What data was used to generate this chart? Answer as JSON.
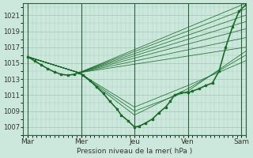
{
  "background_color": "#cce8dc",
  "grid_color": "#aaccbb",
  "line_color": "#1a6b2a",
  "ylabel": "Pression niveau de la mer( hPa )",
  "ylim": [
    1006.0,
    1022.5
  ],
  "yticks": [
    1007,
    1009,
    1011,
    1013,
    1015,
    1017,
    1019,
    1021
  ],
  "xlim": [
    0,
    100
  ],
  "xtick_positions": [
    2,
    26,
    50,
    74,
    98
  ],
  "xtick_labels": [
    "Mar",
    "Mer",
    "Jeu",
    "Ven",
    "Sam"
  ],
  "vline_positions": [
    2,
    26,
    50,
    74,
    98
  ],
  "ensemble_lines_upper": [
    {
      "x": [
        2,
        25,
        100
      ],
      "y": [
        1015.8,
        1013.8,
        1022.5
      ]
    },
    {
      "x": [
        2,
        25,
        100
      ],
      "y": [
        1015.8,
        1013.8,
        1021.8
      ]
    },
    {
      "x": [
        2,
        25,
        100
      ],
      "y": [
        1015.8,
        1013.8,
        1021.0
      ]
    },
    {
      "x": [
        2,
        25,
        100
      ],
      "y": [
        1015.8,
        1013.8,
        1020.2
      ]
    },
    {
      "x": [
        2,
        25,
        100
      ],
      "y": [
        1015.8,
        1013.8,
        1019.3
      ]
    },
    {
      "x": [
        2,
        25,
        100
      ],
      "y": [
        1015.8,
        1013.8,
        1018.2
      ]
    },
    {
      "x": [
        2,
        25,
        100
      ],
      "y": [
        1015.8,
        1013.8,
        1017.0
      ]
    }
  ],
  "ensemble_lines_lower": [
    {
      "x": [
        2,
        25,
        50,
        74,
        100
      ],
      "y": [
        1015.8,
        1013.8,
        1009.0,
        1011.5,
        1016.5
      ]
    },
    {
      "x": [
        2,
        25,
        50,
        74,
        100
      ],
      "y": [
        1015.8,
        1013.8,
        1008.5,
        1011.8,
        1016.0
      ]
    },
    {
      "x": [
        2,
        25,
        50,
        74,
        100
      ],
      "y": [
        1015.8,
        1013.8,
        1009.5,
        1012.2,
        1015.3
      ]
    }
  ],
  "main_line_x": [
    2,
    5,
    8,
    11,
    14,
    17,
    20,
    23,
    25,
    27,
    30,
    33,
    36,
    39,
    42,
    44,
    47,
    50,
    52,
    55,
    58,
    61,
    64,
    66,
    68,
    71,
    74,
    76,
    79,
    82,
    85,
    88,
    91,
    94,
    97,
    100
  ],
  "main_line_y": [
    1015.8,
    1015.3,
    1014.8,
    1014.3,
    1013.9,
    1013.6,
    1013.5,
    1013.6,
    1013.8,
    1013.5,
    1012.8,
    1012.0,
    1011.2,
    1010.2,
    1009.3,
    1008.5,
    1007.8,
    1007.0,
    1007.1,
    1007.5,
    1008.0,
    1008.8,
    1009.5,
    1010.2,
    1011.0,
    1011.3,
    1011.3,
    1011.5,
    1011.8,
    1012.2,
    1012.5,
    1014.0,
    1017.0,
    1019.5,
    1021.5,
    1022.3
  ]
}
